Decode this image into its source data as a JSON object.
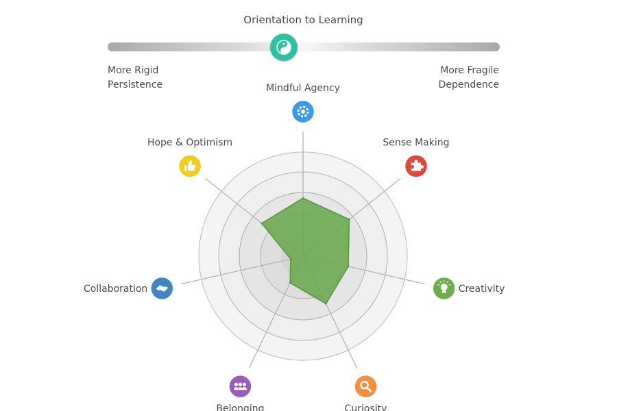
{
  "slider": {
    "title": "Orientation to Learning",
    "position": 0.45,
    "knob_color": "#2fc0a4",
    "knob_icon": "yin-yang-icon",
    "left_label": [
      "More Rigid",
      "Persistence"
    ],
    "right_label": [
      "More Fragile",
      "Dependence"
    ]
  },
  "chart_data": {
    "type": "radar",
    "title": "",
    "rings": 4,
    "range": [
      0,
      4
    ],
    "grid": true,
    "fill_color": "#6aa84f",
    "axes": [
      {
        "label": "Mindful Agency",
        "value": 2.75,
        "color": "#3b9ae1",
        "icon": "gear-head-icon"
      },
      {
        "label": "Sense Making",
        "value": 2.8,
        "color": "#e0483e",
        "icon": "puzzle-icon"
      },
      {
        "label": "Creativity",
        "value": 2.2,
        "color": "#6fac4a",
        "icon": "lightbulb-icon"
      },
      {
        "label": "Curiosity",
        "value": 2.5,
        "color": "#f0913d",
        "icon": "magnifier-icon"
      },
      {
        "label": "Belonging",
        "value": 1.4,
        "color": "#9b5bbf",
        "icon": "group-icon"
      },
      {
        "label": "Collaboration",
        "value": 0.6,
        "color": "#3f86c2",
        "icon": "handshake-icon"
      },
      {
        "label": "Hope & Optimism",
        "value": 2.5,
        "color": "#f2cc1e",
        "icon": "thumbs-up-icon"
      }
    ]
  }
}
